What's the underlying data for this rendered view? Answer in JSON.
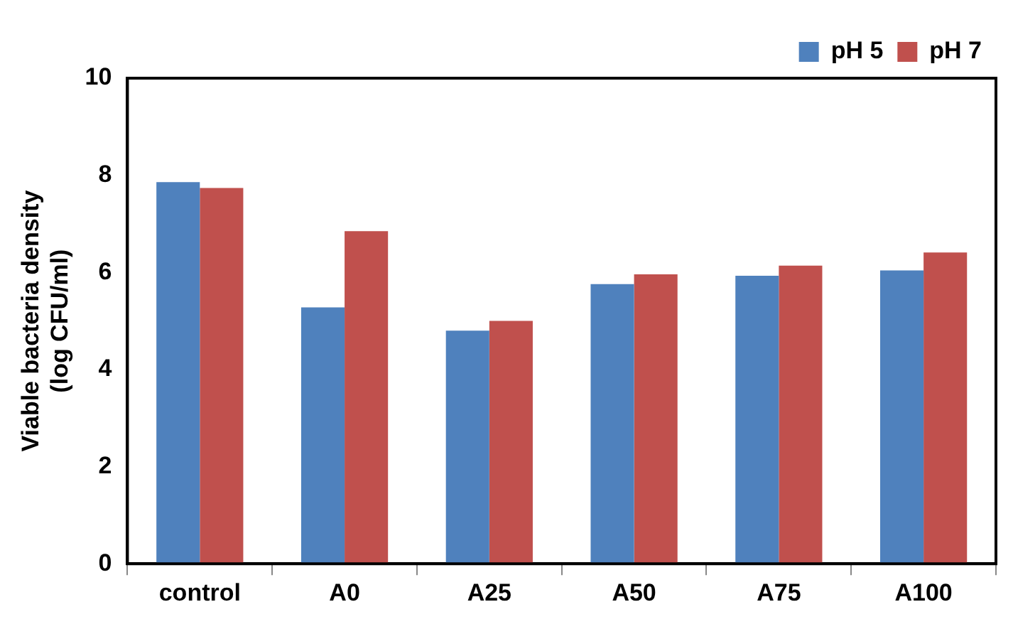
{
  "chart_data": {
    "type": "bar",
    "ylabel": "Viable bacteria density\n(log CFU/ml)",
    "categories": [
      "control",
      "A0",
      "A25",
      "A50",
      "A75",
      "A100"
    ],
    "series": [
      {
        "name": "pH 5",
        "color": "#4f81bd",
        "values": [
          7.86,
          5.28,
          4.8,
          5.76,
          5.93,
          6.04
        ]
      },
      {
        "name": "pH 7",
        "color": "#c0504d",
        "values": [
          7.74,
          6.85,
          5.0,
          5.96,
          6.14,
          6.41
        ]
      }
    ],
    "ylim": [
      0,
      10
    ],
    "yticks": [
      0,
      2,
      4,
      6,
      8,
      10
    ],
    "grid": false,
    "legend": "top right"
  }
}
